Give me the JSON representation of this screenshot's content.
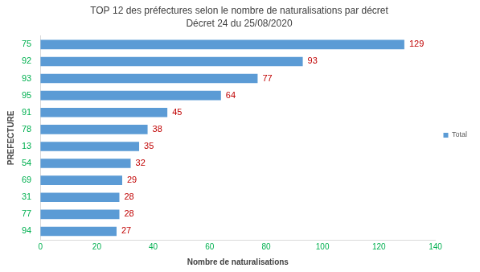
{
  "chart_data": {
    "type": "bar",
    "title": "TOP 12 des préfectures selon le nombre de naturalisations par décret",
    "subtitle": "Décret 24 du 25/08/2020",
    "x_label": "Nombre de naturalisations",
    "y_label": "PREFECTURE",
    "orientation": "horizontal",
    "categories": [
      "75",
      "92",
      "93",
      "95",
      "91",
      "78",
      "13",
      "54",
      "69",
      "31",
      "77",
      "94"
    ],
    "series": [
      {
        "name": "Total",
        "color": "#5b9bd5",
        "values": [
          129,
          93,
          77,
          64,
          45,
          38,
          35,
          32,
          29,
          28,
          28,
          27
        ]
      }
    ],
    "xlim": [
      0,
      140
    ],
    "xticks": [
      0,
      20,
      40,
      60,
      80,
      100,
      120,
      140
    ],
    "grid": false,
    "legend": "right",
    "data_labels": true
  }
}
